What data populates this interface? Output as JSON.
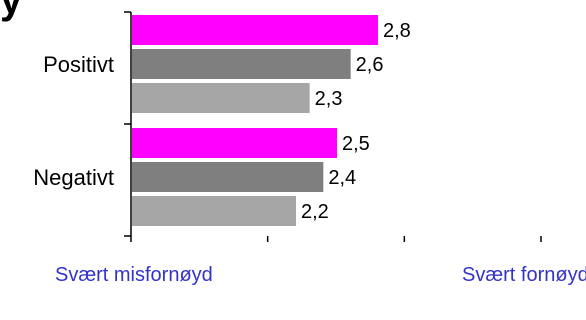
{
  "chart_data": {
    "type": "bar",
    "orientation": "horizontal",
    "categories": [
      "Positivt",
      "Negativt"
    ],
    "series": [
      {
        "values": [
          2.8,
          2.5
        ],
        "color": "#ff00ff"
      },
      {
        "values": [
          2.6,
          2.4
        ],
        "color": "#7f7f7f"
      },
      {
        "values": [
          2.3,
          2.2
        ],
        "color": "#a6a6a6"
      }
    ],
    "value_labels": [
      [
        "2,8",
        "2,6",
        "2,3"
      ],
      [
        "2,5",
        "2,4",
        "2,2"
      ]
    ],
    "xlim": [
      1,
      4
    ],
    "x_ticks": [
      1,
      2,
      3,
      4
    ],
    "x_end_labels": {
      "min": "Svært misfornøyd",
      "max": "Svært fornøyd"
    },
    "grid": false,
    "legend": "none"
  },
  "header_fragment": "y"
}
